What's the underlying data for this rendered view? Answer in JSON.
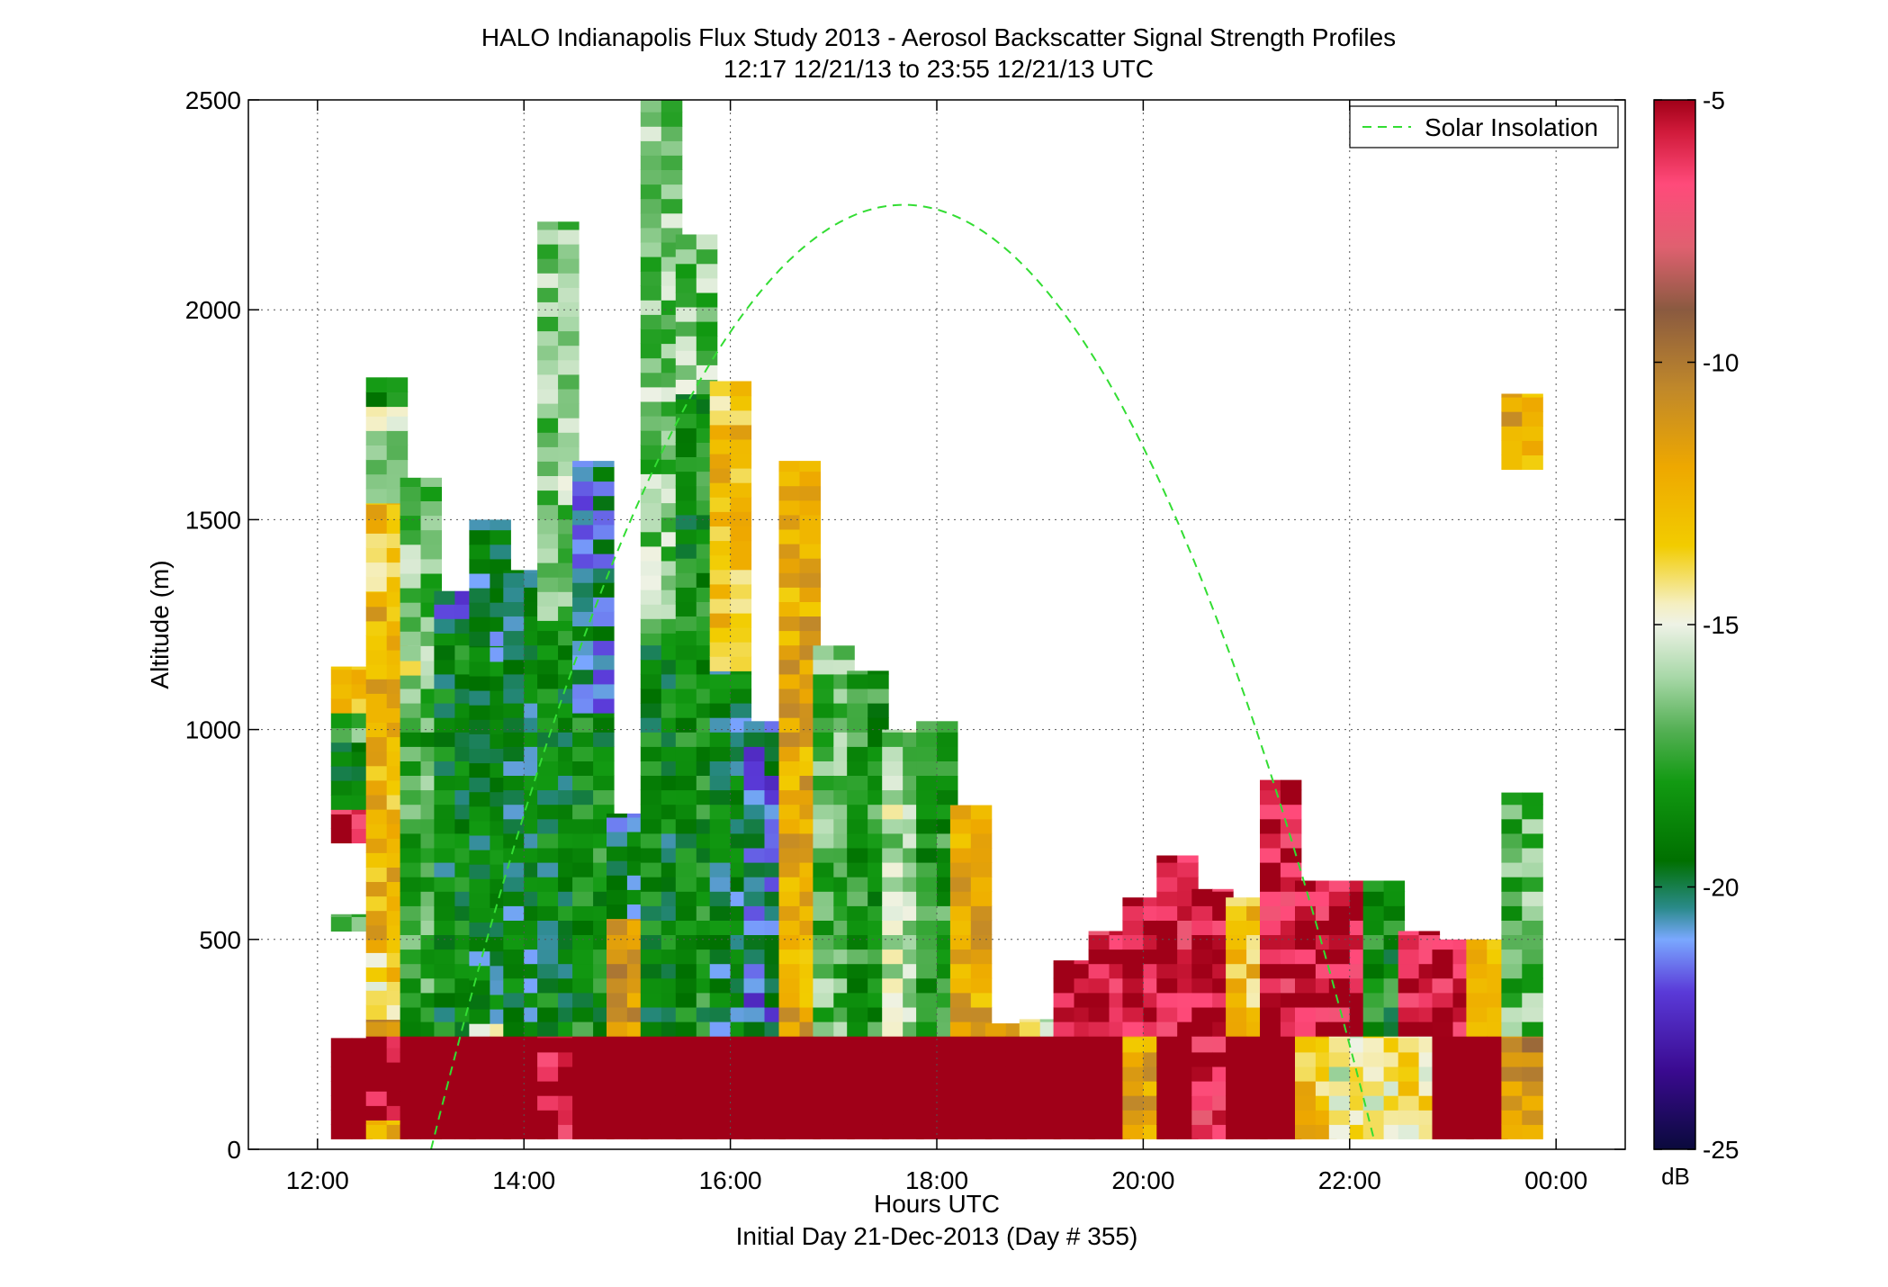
{
  "chart_data": {
    "type": "heatmap",
    "title": "HALO Indianapolis Flux Study 2013 - Aerosol Backscatter Signal Strength Profiles",
    "subtitle": "12:17 12/21/13 to 23:55 12/21/13  UTC",
    "xlabel": "Hours UTC",
    "xlabel2": "Initial Day 21-Dec-2013 (Day # 355)",
    "ylabel": "Altitude (m)",
    "xlim": [
      11.33,
      24.67
    ],
    "ylim": [
      0,
      2500
    ],
    "x_ticks": [
      12,
      14,
      16,
      18,
      20,
      22,
      24
    ],
    "x_tick_labels": [
      "12:00",
      "14:00",
      "16:00",
      "18:00",
      "20:00",
      "22:00",
      "00:00"
    ],
    "y_ticks": [
      0,
      500,
      1000,
      1500,
      2000,
      2500
    ],
    "y_tick_labels": [
      "0",
      "500",
      "1000",
      "1500",
      "2000",
      "2500"
    ],
    "grid": true,
    "legend": {
      "position": "top-right",
      "entries": [
        {
          "label": "Solar Insolation",
          "style": "dashed",
          "color": "#33dd33"
        }
      ]
    },
    "colorbar": {
      "unit": "dB",
      "min": -25,
      "max": -5,
      "ticks": [
        -5,
        -10,
        -15,
        -20,
        -25
      ],
      "tick_labels": [
        "-5",
        "-10",
        "-15",
        "-20",
        "-25"
      ],
      "stops": [
        [
          -25,
          "#0a0a3c"
        ],
        [
          -23.5,
          "#3a0a90"
        ],
        [
          -22,
          "#5a3ad8"
        ],
        [
          -21,
          "#7aa8ff"
        ],
        [
          -20.4,
          "#2a8a8a"
        ],
        [
          -19.5,
          "#007000"
        ],
        [
          -18,
          "#129a12"
        ],
        [
          -17,
          "#55b055"
        ],
        [
          -16,
          "#a8d8a8"
        ],
        [
          -15,
          "#eef2e6"
        ],
        [
          -14.6,
          "#f5efc0"
        ],
        [
          -13.5,
          "#f2cc00"
        ],
        [
          -12,
          "#eea800"
        ],
        [
          -10.5,
          "#c0882a"
        ],
        [
          -9,
          "#8a5a40"
        ],
        [
          -7.8,
          "#e06070"
        ],
        [
          -6.6,
          "#ff4a7a"
        ],
        [
          -5.6,
          "#d01a3a"
        ],
        [
          -5,
          "#a00018"
        ]
      ]
    },
    "solar_insolation": {
      "label": "Solar Insolation",
      "peak_time_utc": 17.68,
      "peak_altitude": 2250,
      "zero_crossings_utc": [
        13.1,
        22.24
      ]
    },
    "time_step_hours": 0.2,
    "altitude_step_m": 34.5,
    "profiles": [
      {
        "t": 12.33,
        "segments": [
          [
            25,
            265,
            -5
          ],
          [
            520,
            560,
            -17
          ],
          [
            730,
            810,
            -6
          ],
          [
            810,
            970,
            -19.8
          ],
          [
            970,
            1040,
            -17.5
          ],
          [
            1040,
            1150,
            -13
          ]
        ]
      },
      {
        "t": 12.67,
        "segments": [
          [
            25,
            70,
            -13
          ],
          [
            70,
            270,
            -5
          ],
          [
            270,
            310,
            -11.5
          ],
          [
            310,
            400,
            -14.6
          ],
          [
            400,
            500,
            -13.5
          ],
          [
            500,
            1330,
            -12.5
          ],
          [
            1330,
            1540,
            -13
          ],
          [
            1540,
            1770,
            -15.8
          ],
          [
            1770,
            1840,
            -19
          ]
        ]
      },
      {
        "t": 13.0,
        "segments": [
          [
            25,
            270,
            -5
          ],
          [
            270,
            1130,
            -17.5
          ],
          [
            1130,
            1200,
            -15
          ],
          [
            1200,
            1600,
            -16.5
          ]
        ]
      },
      {
        "t": 13.33,
        "segments": [
          [
            25,
            270,
            -5
          ],
          [
            270,
            1230,
            -19
          ],
          [
            1230,
            1330,
            -21
          ]
        ]
      },
      {
        "t": 13.67,
        "segments": [
          [
            25,
            270,
            -5
          ],
          [
            270,
            300,
            -14.6
          ],
          [
            300,
            1200,
            -19.5
          ],
          [
            1200,
            1500,
            -20
          ]
        ]
      },
      {
        "t": 14.0,
        "segments": [
          [
            25,
            270,
            -5
          ],
          [
            270,
            1380,
            -19.5
          ]
        ]
      },
      {
        "t": 14.33,
        "segments": [
          [
            25,
            270,
            -6
          ],
          [
            270,
            1260,
            -19
          ],
          [
            1260,
            2210,
            -16.5
          ]
        ]
      },
      {
        "t": 14.67,
        "segments": [
          [
            25,
            270,
            -5
          ],
          [
            270,
            1040,
            -18.5
          ],
          [
            1040,
            1640,
            -20.5
          ]
        ]
      },
      {
        "t": 15.0,
        "segments": [
          [
            25,
            270,
            -5
          ],
          [
            270,
            550,
            -11.5
          ],
          [
            550,
            800,
            -20
          ]
        ]
      },
      {
        "t": 15.33,
        "segments": [
          [
            25,
            270,
            -5
          ],
          [
            270,
            1230,
            -19
          ],
          [
            1230,
            2500,
            -16.5
          ]
        ]
      },
      {
        "t": 15.67,
        "segments": [
          [
            25,
            270,
            -5
          ],
          [
            270,
            1800,
            -18.5
          ],
          [
            1800,
            2180,
            -16.5
          ]
        ]
      },
      {
        "t": 16.0,
        "segments": [
          [
            25,
            270,
            -5
          ],
          [
            270,
            1140,
            -19.5
          ],
          [
            1140,
            1830,
            -13
          ]
        ]
      },
      {
        "t": 16.33,
        "segments": [
          [
            25,
            270,
            -5
          ],
          [
            270,
            1020,
            -21
          ]
        ]
      },
      {
        "t": 16.67,
        "segments": [
          [
            25,
            270,
            -5
          ],
          [
            270,
            1640,
            -12
          ]
        ]
      },
      {
        "t": 17.0,
        "segments": [
          [
            25,
            270,
            -5
          ],
          [
            270,
            1200,
            -17
          ]
        ]
      },
      {
        "t": 17.33,
        "segments": [
          [
            25,
            270,
            -5
          ],
          [
            270,
            1140,
            -18
          ]
        ]
      },
      {
        "t": 17.67,
        "segments": [
          [
            25,
            270,
            -5
          ],
          [
            270,
            1000,
            -16
          ]
        ]
      },
      {
        "t": 18.0,
        "segments": [
          [
            25,
            270,
            -5
          ],
          [
            270,
            1020,
            -18
          ]
        ]
      },
      {
        "t": 18.33,
        "segments": [
          [
            25,
            270,
            -5
          ],
          [
            270,
            820,
            -12
          ]
        ]
      },
      {
        "t": 18.67,
        "segments": [
          [
            25,
            270,
            -5
          ],
          [
            270,
            300,
            -11.5
          ]
        ]
      },
      {
        "t": 19.0,
        "segments": [
          [
            25,
            270,
            -5
          ],
          [
            270,
            310,
            -15.5
          ]
        ]
      },
      {
        "t": 19.33,
        "segments": [
          [
            25,
            270,
            -5
          ],
          [
            270,
            450,
            -5.5
          ]
        ]
      },
      {
        "t": 19.67,
        "segments": [
          [
            25,
            270,
            -5
          ],
          [
            270,
            520,
            -6
          ]
        ]
      },
      {
        "t": 20.0,
        "segments": [
          [
            25,
            270,
            -12
          ],
          [
            270,
            600,
            -5.5
          ]
        ]
      },
      {
        "t": 20.33,
        "segments": [
          [
            25,
            270,
            -5
          ],
          [
            270,
            700,
            -6
          ]
        ]
      },
      {
        "t": 20.67,
        "segments": [
          [
            25,
            270,
            -6
          ],
          [
            270,
            620,
            -5.5
          ]
        ]
      },
      {
        "t": 21.0,
        "segments": [
          [
            25,
            270,
            -5
          ],
          [
            270,
            600,
            -13
          ]
        ]
      },
      {
        "t": 21.33,
        "segments": [
          [
            25,
            270,
            -5
          ],
          [
            270,
            880,
            -6
          ]
        ]
      },
      {
        "t": 21.67,
        "segments": [
          [
            25,
            270,
            -13
          ],
          [
            270,
            640,
            -5.5
          ]
        ]
      },
      {
        "t": 22.0,
        "segments": [
          [
            25,
            270,
            -15
          ],
          [
            270,
            640,
            -5.5
          ]
        ]
      },
      {
        "t": 22.33,
        "segments": [
          [
            25,
            270,
            -14.6
          ],
          [
            270,
            640,
            -18.5
          ]
        ]
      },
      {
        "t": 22.67,
        "segments": [
          [
            25,
            270,
            -14
          ],
          [
            270,
            520,
            -5.5
          ]
        ]
      },
      {
        "t": 23.0,
        "segments": [
          [
            25,
            270,
            -5
          ],
          [
            270,
            500,
            -5.5
          ]
        ]
      },
      {
        "t": 23.33,
        "segments": [
          [
            25,
            270,
            -5
          ],
          [
            270,
            500,
            -13
          ]
        ]
      },
      {
        "t": 23.67,
        "segments": [
          [
            25,
            270,
            -11
          ],
          [
            270,
            850,
            -17
          ],
          [
            1620,
            1800,
            -12
          ]
        ]
      }
    ]
  }
}
